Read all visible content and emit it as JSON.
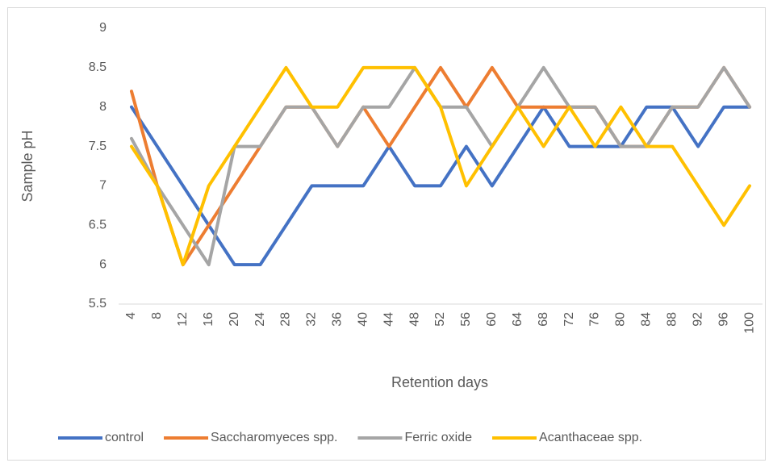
{
  "chart_data": {
    "type": "line",
    "x_label": "Retention days",
    "y_label": "Sample pH",
    "categories": [
      "4",
      "8",
      "12",
      "16",
      "20",
      "24",
      "28",
      "32",
      "36",
      "40",
      "44",
      "48",
      "52",
      "56",
      "60",
      "64",
      "68",
      "72",
      "76",
      "80",
      "84",
      "88",
      "92",
      "96",
      "100"
    ],
    "series": [
      {
        "name": "control",
        "color": "#4472c4",
        "values": [
          8,
          7.5,
          7,
          6.5,
          6,
          6,
          6.5,
          7,
          7,
          7,
          7.5,
          7,
          7,
          7.5,
          7,
          7.5,
          8,
          7.5,
          7.5,
          7.5,
          8,
          8,
          7.5,
          8,
          8
        ]
      },
      {
        "name": "Saccharomyeces spp.",
        "color": "#ed7d31",
        "values": [
          8.2,
          7,
          6,
          6.5,
          7,
          7.5,
          8,
          8,
          7.5,
          8,
          7.5,
          8,
          8.5,
          8,
          8.5,
          8,
          8,
          8,
          8,
          7.5,
          7.5,
          8,
          8,
          8.5,
          8
        ]
      },
      {
        "name": "Ferric oxide",
        "color": "#a5a5a5",
        "values": [
          7.6,
          7,
          6.5,
          6,
          7.5,
          7.5,
          8,
          8,
          7.5,
          8,
          8,
          8.5,
          8,
          8,
          7.5,
          8,
          8.5,
          8,
          8,
          7.5,
          7.5,
          8,
          8,
          8.5,
          8
        ]
      },
      {
        "name": "Acanthaceae spp.",
        "color": "#ffc000",
        "values": [
          7.5,
          7,
          6,
          7,
          7.5,
          8,
          8.5,
          8,
          8,
          8.5,
          8.5,
          8.5,
          8,
          7,
          7.5,
          8,
          7.5,
          8,
          7.5,
          8,
          7.5,
          7.5,
          7,
          6.5,
          7
        ]
      }
    ],
    "ylim": [
      5.5,
      9
    ],
    "yticks": [
      5.5,
      6,
      6.5,
      7,
      7.5,
      8,
      8.5,
      9
    ],
    "grid": false,
    "legend": "bottom"
  }
}
